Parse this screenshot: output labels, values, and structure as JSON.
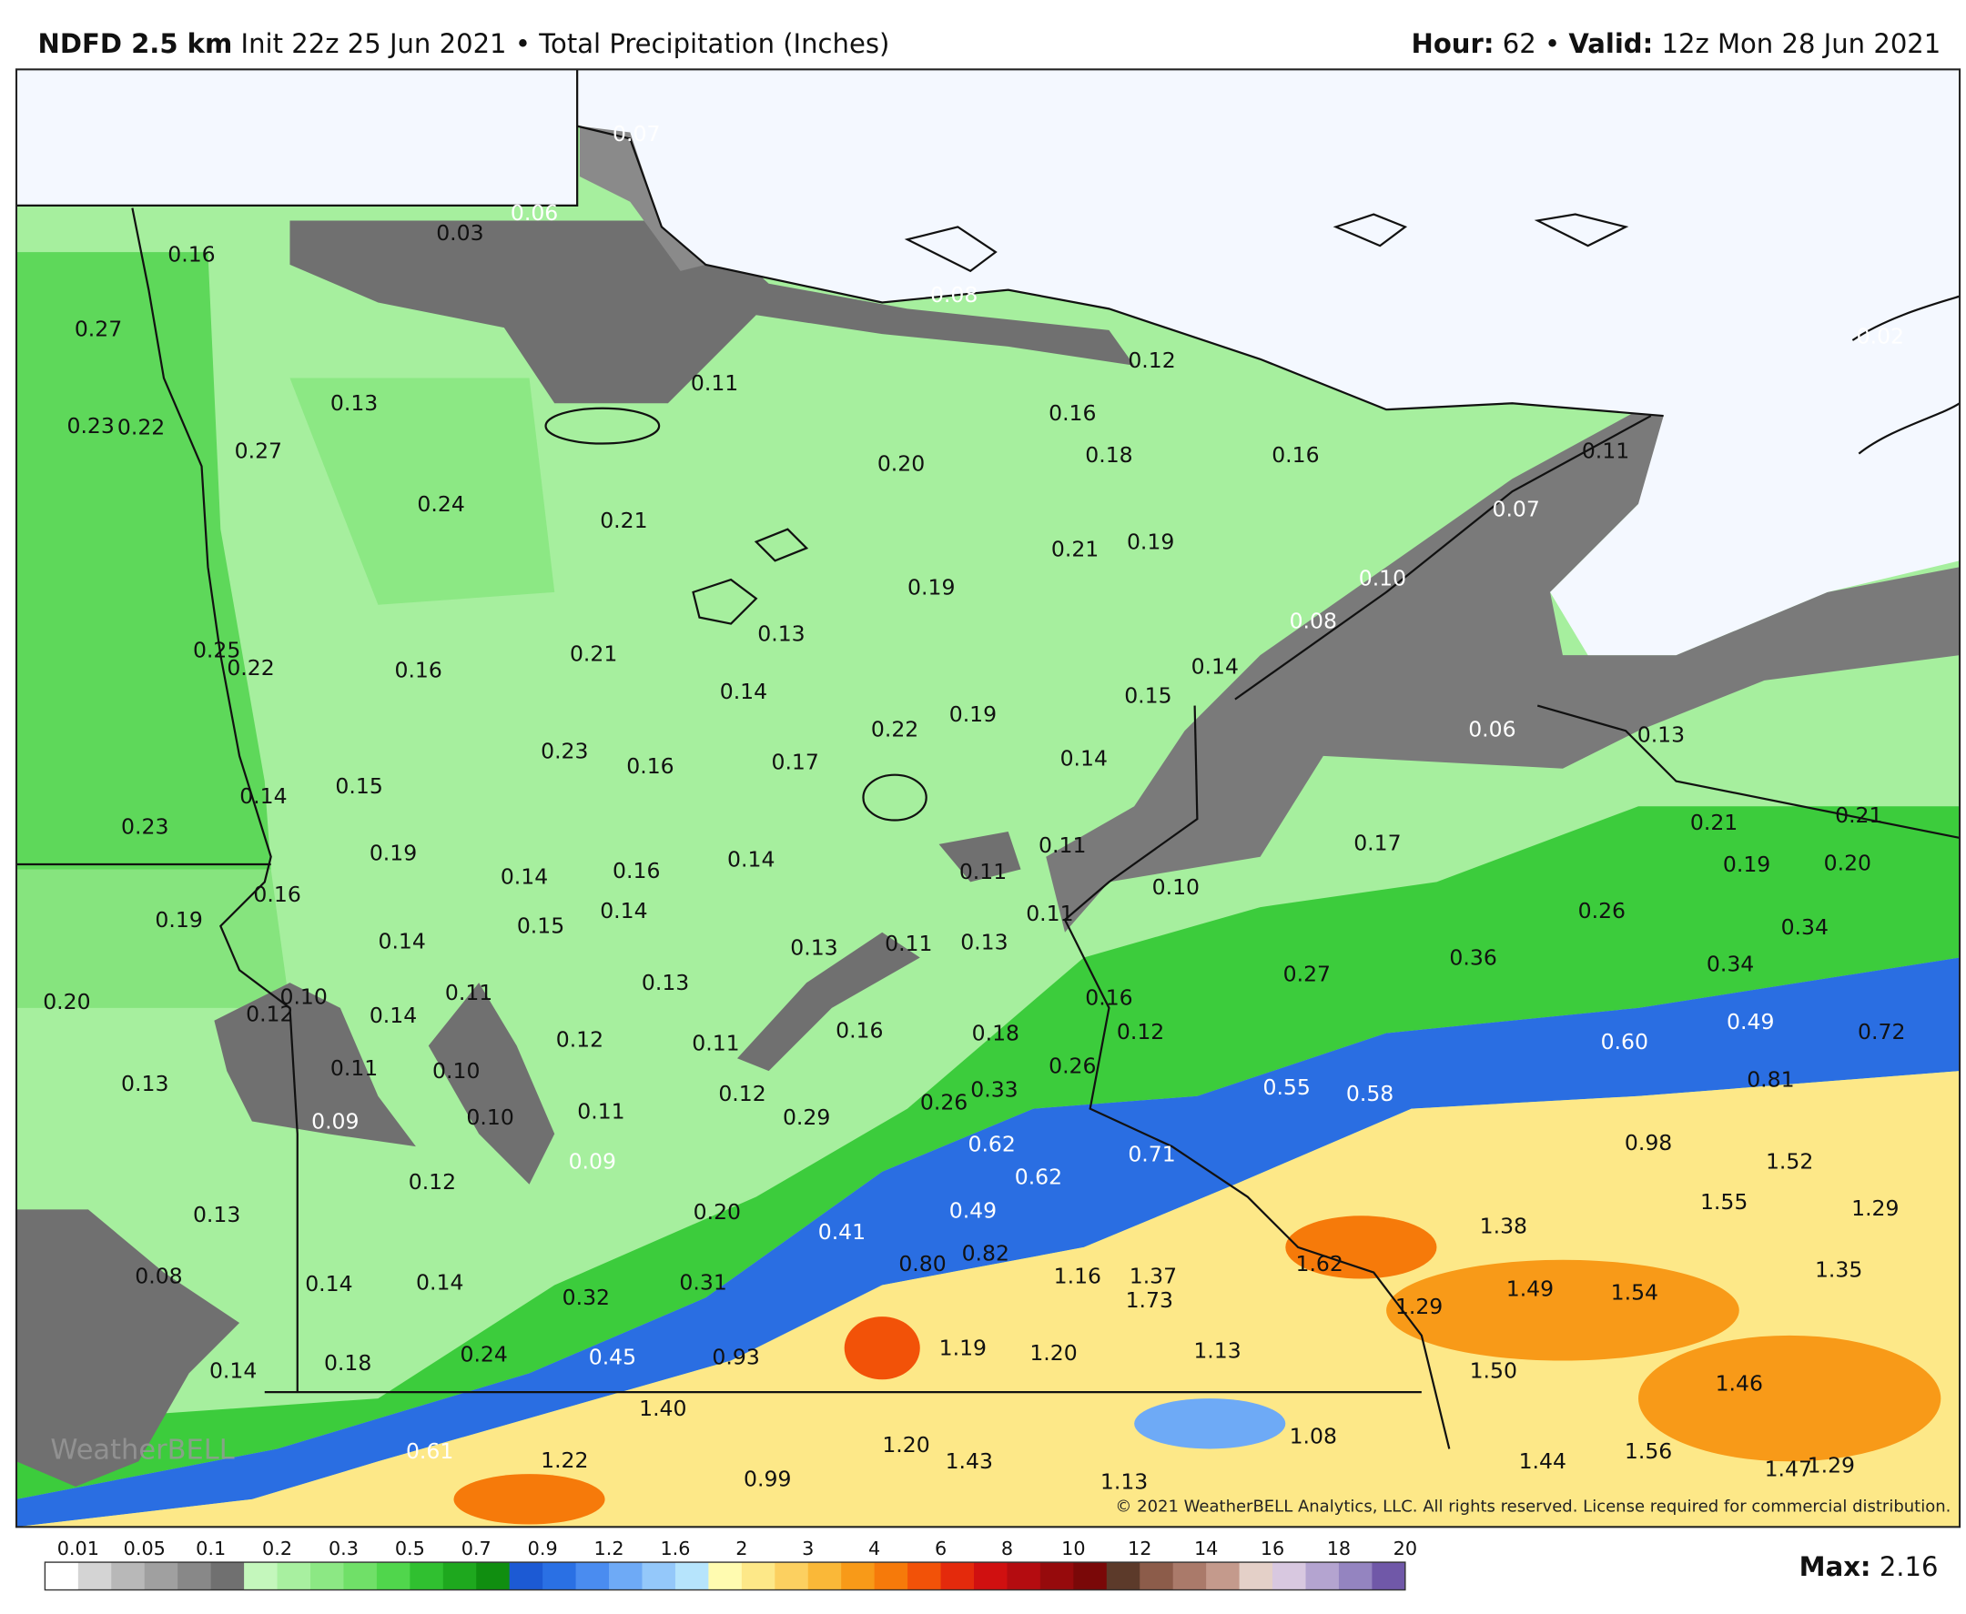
{
  "header": {
    "model": "NDFD 2.5 km",
    "init": "Init 22z 25 Jun 2021",
    "separator": "•",
    "field": "Total Precipitation (Inches)",
    "hour_label": "Hour:",
    "hour_value": "62",
    "valid_label": "Valid:",
    "valid_value": "12z Mon 28 Jun 2021"
  },
  "map_labels": [
    "0.07",
    "0.06",
    "0.03",
    "0.16",
    "0.08",
    "0.27",
    "0.12",
    "0.02",
    "0.11",
    "0.13",
    "0.16",
    "0.23",
    "0.22",
    "0.27",
    "0.18",
    "0.16",
    "0.11",
    "0.20",
    "0.24",
    "0.07",
    "0.21",
    "0.21",
    "0.19",
    "0.10",
    "0.19",
    "0.08",
    "0.13",
    "0.25",
    "0.22",
    "0.16",
    "0.21",
    "0.14",
    "0.14",
    "0.15",
    "0.19",
    "0.22",
    "0.06",
    "0.13",
    "0.23",
    "0.16",
    "0.17",
    "0.14",
    "0.14",
    "0.15",
    "0.23",
    "0.21",
    "0.21",
    "0.17",
    "0.11",
    "0.19",
    "0.14",
    "0.16",
    "0.14",
    "0.11",
    "0.10",
    "0.19",
    "0.20",
    "0.16",
    "0.19",
    "0.15",
    "0.14",
    "0.11",
    "0.26",
    "0.34",
    "0.14",
    "0.13",
    "0.11",
    "0.13",
    "0.36",
    "0.34",
    "0.27",
    "0.20",
    "0.10",
    "0.12",
    "0.11",
    "0.13",
    "0.14",
    "0.16",
    "0.12",
    "0.49",
    "0.72",
    "0.12",
    "0.11",
    "0.16",
    "0.18",
    "0.60",
    "0.11",
    "0.10",
    "0.26",
    "0.81",
    "0.13",
    "0.55",
    "0.58",
    "0.12",
    "0.33",
    "0.26",
    "0.09",
    "0.10",
    "0.11",
    "0.29",
    "0.98",
    "0.62",
    "0.71",
    "1.52",
    "0.62",
    "0.12",
    "0.09",
    "0.13",
    "0.20",
    "0.49",
    "1.38",
    "1.55",
    "1.29",
    "0.41",
    "0.80",
    "0.82",
    "1.62",
    "0.08",
    "0.14",
    "0.14",
    "0.32",
    "0.31",
    "1.16",
    "1.37",
    "1.73",
    "1.29",
    "1.49",
    "1.54",
    "1.35",
    "0.45",
    "0.93",
    "1.19",
    "1.20",
    "1.13",
    "1.50",
    "0.14",
    "0.18",
    "0.24",
    "1.46",
    "1.40",
    "1.08",
    "1.20",
    "1.43",
    "0.61",
    "1.22",
    "1.44",
    "1.56",
    "1.47",
    "1.29",
    "0.99",
    "1.13"
  ],
  "colorbar": {
    "labels": [
      "0.01",
      "0.05",
      "0.1",
      "0.2",
      "0.3",
      "0.5",
      "0.7",
      "0.9",
      "1.2",
      "1.6",
      "2",
      "3",
      "4",
      "6",
      "8",
      "10",
      "12",
      "14",
      "16",
      "18",
      "20"
    ],
    "colors": [
      "#ffffff",
      "#d4d4d4",
      "#b8b8b8",
      "#a0a0a0",
      "#888888",
      "#707070",
      "#c4f7bc",
      "#a8f0a0",
      "#8ce884",
      "#70e068",
      "#50d64c",
      "#30c030",
      "#1ea81e",
      "#108e10",
      "#1c5ad4",
      "#2a70e4",
      "#4a8cf0",
      "#6eaaf6",
      "#94c8fa",
      "#b6e4fc",
      "#fffbb0",
      "#fde888",
      "#fcd060",
      "#fab838",
      "#f89a18",
      "#f67a0a",
      "#f25208",
      "#e42a0c",
      "#d01010",
      "#b40c10",
      "#960a0c",
      "#7a0808",
      "#5c3a2a",
      "#8c5c4a",
      "#aa7a6a",
      "#c49a8c",
      "#e4d0c8",
      "#d8c8e0",
      "#b4a4d0",
      "#9484c0",
      "#7058a8",
      "#5c4690",
      "#7a0a7a",
      "#960a98",
      "#b40ab8",
      "#d40ad8"
    ]
  },
  "footer": {
    "max_label": "Max:",
    "max_value": "2.16",
    "copyright": "© 2021 WeatherBELL Analytics, LLC. All rights reserved. License required for commercial distribution.",
    "watermark": "WeatherBELL"
  }
}
